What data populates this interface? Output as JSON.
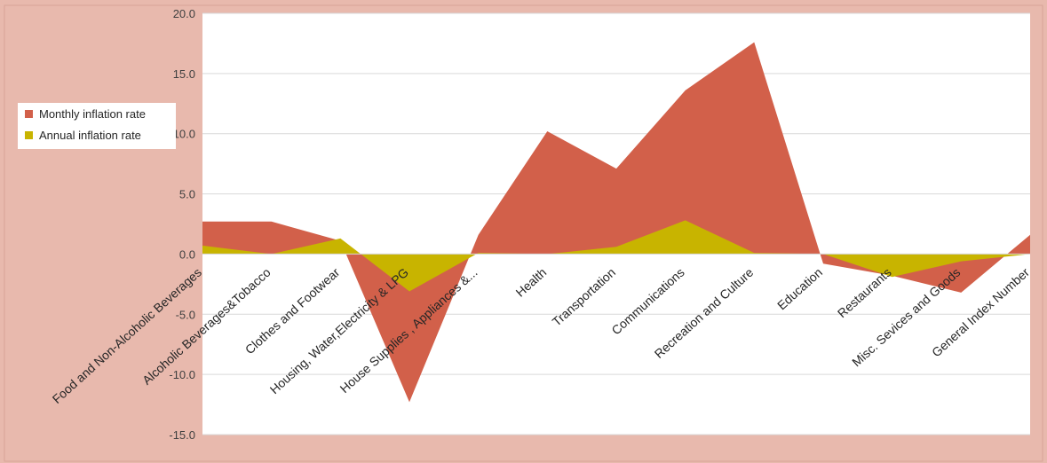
{
  "chart_data": {
    "type": "area",
    "categories": [
      "Food and Non-Alcoholic Beverages",
      "Alcoholic Beverages&Tobacco",
      "Clothes and Footwear",
      "Housing, Water,Electricity & LPG",
      "House Supplies , Appliances &...",
      "Health",
      "Transportation",
      "Communications",
      "Recreation and Culture",
      "Education",
      "Restaurants",
      "Misc. Sevices and Goods",
      "General Index Number"
    ],
    "series": [
      {
        "name": "Monthly inflation rate",
        "color": "#D2604A",
        "values": [
          2.7,
          2.7,
          1.1,
          -12.3,
          1.6,
          10.2,
          7.1,
          13.6,
          17.6,
          -0.8,
          -1.8,
          -3.2,
          1.6
        ]
      },
      {
        "name": "Annual inflation rate",
        "color": "#C8B400",
        "values": [
          0.7,
          0.0,
          1.3,
          -3.1,
          0.1,
          0.0,
          0.6,
          2.8,
          0.1,
          0.0,
          -1.9,
          -0.6,
          0.0
        ]
      }
    ],
    "ylim": [
      -15,
      20
    ],
    "yticks": [
      "-15.0",
      "-10.0",
      "-5.0",
      "0.0",
      "5.0",
      "10.0",
      "15.0",
      "20.0"
    ],
    "grid": true,
    "legend_position": "left",
    "colors": {
      "outer_background": "#E8B9AD",
      "plot_background": "#FFFFFF",
      "gridline": "#D9D9D9"
    }
  }
}
